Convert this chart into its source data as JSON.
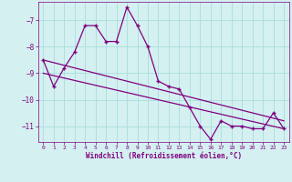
{
  "hours": [
    0,
    1,
    2,
    3,
    4,
    5,
    6,
    7,
    8,
    9,
    10,
    11,
    12,
    13,
    14,
    15,
    16,
    17,
    18,
    19,
    20,
    21,
    22,
    23
  ],
  "windchill": [
    -8.5,
    -9.5,
    -8.8,
    -8.2,
    -7.2,
    -7.2,
    -7.8,
    -7.8,
    -6.5,
    -7.2,
    -8.0,
    -9.3,
    -9.5,
    -9.6,
    -10.3,
    -11.0,
    -11.5,
    -10.8,
    -11.0,
    -11.0,
    -11.1,
    -11.1,
    -10.5,
    -11.1
  ],
  "trend1_x": [
    0,
    23
  ],
  "trend1_y": [
    -8.5,
    -10.8
  ],
  "trend2_x": [
    0,
    23
  ],
  "trend2_y": [
    -9.0,
    -11.1
  ],
  "line_color": "#800080",
  "bg_color": "#d4f0f0",
  "grid_color": "#aadddd",
  "xlabel": "Windchill (Refroidissement éolien,°C)",
  "ylim": [
    -11.6,
    -6.3
  ],
  "xlim": [
    -0.5,
    23.5
  ],
  "yticks": [
    -11,
    -10,
    -9,
    -8,
    -7
  ],
  "xticks": [
    0,
    1,
    2,
    3,
    4,
    5,
    6,
    7,
    8,
    9,
    10,
    11,
    12,
    13,
    14,
    15,
    16,
    17,
    18,
    19,
    20,
    21,
    22,
    23
  ]
}
